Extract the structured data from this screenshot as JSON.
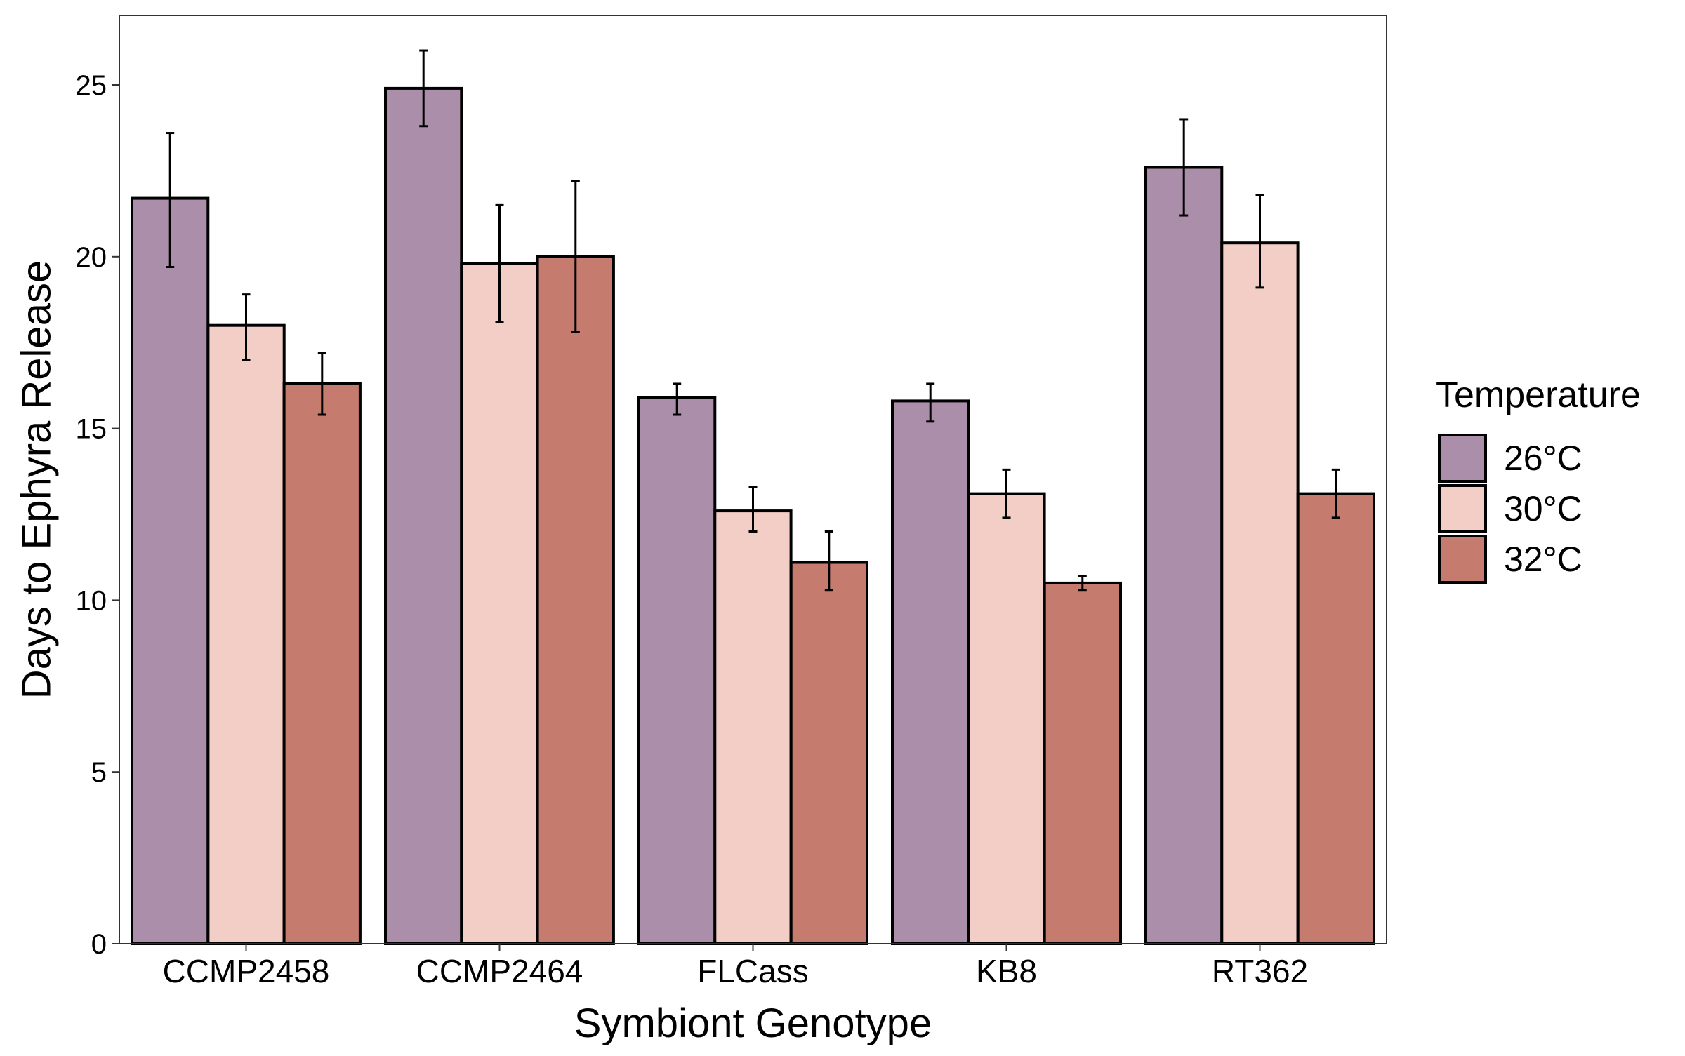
{
  "chart_data": {
    "type": "bar",
    "xlabel": "Symbiont Genotype",
    "ylabel": "Days to Ephyra Release",
    "ylim": [
      0,
      27
    ],
    "yticks": [
      0,
      5,
      10,
      15,
      20,
      25
    ],
    "grid": false,
    "legend": {
      "title": "Temperature",
      "position": "right"
    },
    "categories": [
      "CCMP2458",
      "CCMP2464",
      "FLCass",
      "KB8",
      "RT362"
    ],
    "series": [
      {
        "name": "26°C",
        "color": "#ab8ea9",
        "values": [
          21.7,
          24.9,
          15.9,
          15.8,
          22.6
        ],
        "error_low": [
          19.7,
          23.8,
          15.4,
          15.2,
          21.2
        ],
        "error_high": [
          23.6,
          26.0,
          16.3,
          16.3,
          24.0
        ]
      },
      {
        "name": "30°C",
        "color": "#f2cec6",
        "values": [
          18.0,
          19.8,
          12.6,
          13.1,
          20.4
        ],
        "error_low": [
          17.0,
          18.1,
          12.0,
          12.4,
          19.1
        ],
        "error_high": [
          18.9,
          21.5,
          13.3,
          13.8,
          21.8
        ]
      },
      {
        "name": "32°C",
        "color": "#c67b6f",
        "values": [
          16.3,
          20.0,
          11.1,
          10.5,
          13.1
        ],
        "error_low": [
          15.4,
          17.8,
          10.3,
          10.3,
          12.4
        ],
        "error_high": [
          17.2,
          22.2,
          12.0,
          10.7,
          13.8
        ]
      }
    ]
  }
}
